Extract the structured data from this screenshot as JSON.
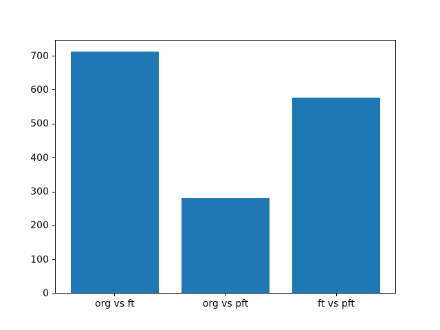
{
  "chart_data": {
    "type": "bar",
    "categories": [
      "org vs ft",
      "org vs pft",
      "ft vs pft"
    ],
    "values": [
      713,
      282,
      577
    ],
    "title": "",
    "xlabel": "",
    "ylabel": "",
    "ylim": [
      0,
      748.65
    ],
    "xlim": [
      -0.54,
      2.54
    ],
    "yticks": [
      0,
      100,
      200,
      300,
      400,
      500,
      600,
      700
    ],
    "bar_width_fraction": 0.8,
    "bar_color": "#1f77b4",
    "axis_color": "#000000",
    "background_color": "#ffffff",
    "grid": false,
    "legend": null
  }
}
